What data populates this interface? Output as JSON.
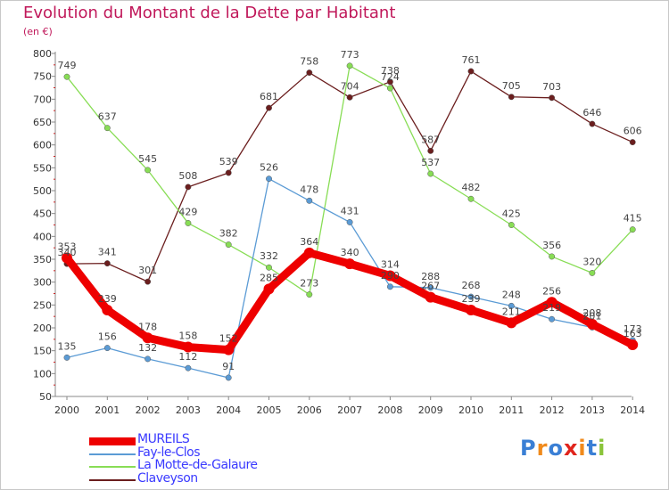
{
  "title": "Evolution du Montant de la Dette par Habitant",
  "unit": "(en €)",
  "logo_text": "Proxiti",
  "chart_data": {
    "type": "line",
    "x": [
      "2000",
      "2001",
      "2002",
      "2003",
      "2004",
      "2005",
      "2006",
      "2007",
      "2008",
      "2009",
      "2010",
      "2011",
      "2012",
      "2013",
      "2014"
    ],
    "ylim": [
      50,
      800
    ],
    "yticks": [
      50,
      100,
      150,
      200,
      250,
      300,
      350,
      400,
      450,
      500,
      550,
      600,
      650,
      700,
      750,
      800
    ],
    "grid": false,
    "legend_placement": "bottom-left",
    "series": [
      {
        "name": "MUREILS",
        "color": "#ee0000",
        "values": [
          353,
          239,
          178,
          158,
          152,
          285,
          364,
          340,
          314,
          267,
          239,
          211,
          256,
          208,
          163
        ],
        "labels": [
          "353",
          "239",
          "178",
          "158",
          "152",
          "285",
          "364",
          "340",
          "314",
          "267",
          "239",
          "211",
          "256",
          "208",
          "163"
        ]
      },
      {
        "name": "Fay-le-Clos",
        "color": "#5b9bd5",
        "values": [
          135,
          156,
          132,
          112,
          91,
          526,
          478,
          431,
          290,
          288,
          268,
          248,
          219,
          201,
          173
        ],
        "labels": [
          "135",
          "156",
          "132",
          "112",
          "91",
          "526",
          "478",
          "431",
          "290",
          "288",
          "268",
          "248",
          "219",
          "201",
          "173"
        ]
      },
      {
        "name": "La Motte-de-Galaure",
        "color": "#88dd55",
        "values": [
          749,
          637,
          545,
          429,
          382,
          332,
          273,
          773,
          724,
          537,
          482,
          425,
          356,
          320,
          415
        ],
        "labels": [
          "749",
          "637",
          "545",
          "429",
          "382",
          "332",
          "273",
          "773",
          "724",
          "537",
          "482",
          "425",
          "356",
          "320",
          "415"
        ]
      },
      {
        "name": "Claveyson",
        "color": "#6b1e1e",
        "values": [
          340,
          341,
          301,
          508,
          539,
          681,
          758,
          704,
          738,
          587,
          761,
          705,
          703,
          646,
          606
        ],
        "labels": [
          "340",
          "341",
          "301",
          "508",
          "539",
          "681",
          "758",
          "704",
          "738",
          "587",
          "761",
          "705",
          "703",
          "646",
          "606"
        ]
      }
    ]
  }
}
